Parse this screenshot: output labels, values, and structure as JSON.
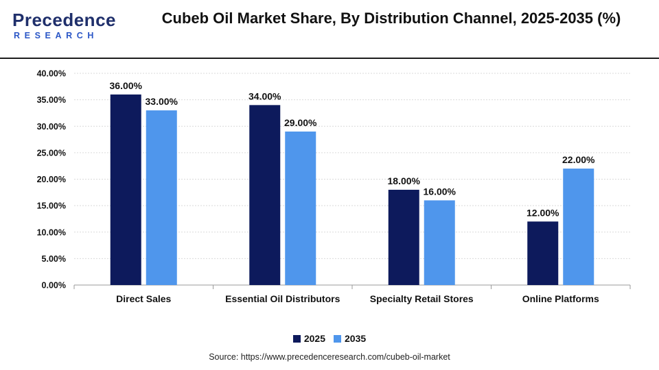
{
  "brand": {
    "logo_text": "Precedence",
    "logo_sub": "RESEARCH"
  },
  "chart_data": {
    "type": "bar",
    "title": "Cubeb Oil Market Share, By Distribution Channel, 2025-2035 (%)",
    "categories": [
      "Direct Sales",
      "Essential Oil Distributors",
      "Specialty Retail Stores",
      "Online Platforms"
    ],
    "series": [
      {
        "name": "2025",
        "values": [
          36.0,
          34.0,
          18.0,
          12.0
        ],
        "color": "#0d1a5c"
      },
      {
        "name": "2035",
        "values": [
          33.0,
          29.0,
          16.0,
          22.0
        ],
        "color": "#4f96ec"
      }
    ],
    "ylim": [
      0,
      40
    ],
    "y_ticks": [
      0,
      5,
      10,
      15,
      20,
      25,
      30,
      35,
      40
    ],
    "y_tick_labels": [
      "0.00%",
      "5.00%",
      "10.00%",
      "15.00%",
      "20.00%",
      "25.00%",
      "30.00%",
      "35.00%",
      "40.00%"
    ],
    "value_labels": [
      [
        "36.00%",
        "34.00%",
        "18.00%",
        "12.00%"
      ],
      [
        "33.00%",
        "29.00%",
        "16.00%",
        "22.00%"
      ]
    ],
    "grid": true,
    "legend_position": "bottom-center"
  },
  "source": "Source: https://www.precedenceresearch.com/cubeb-oil-market"
}
